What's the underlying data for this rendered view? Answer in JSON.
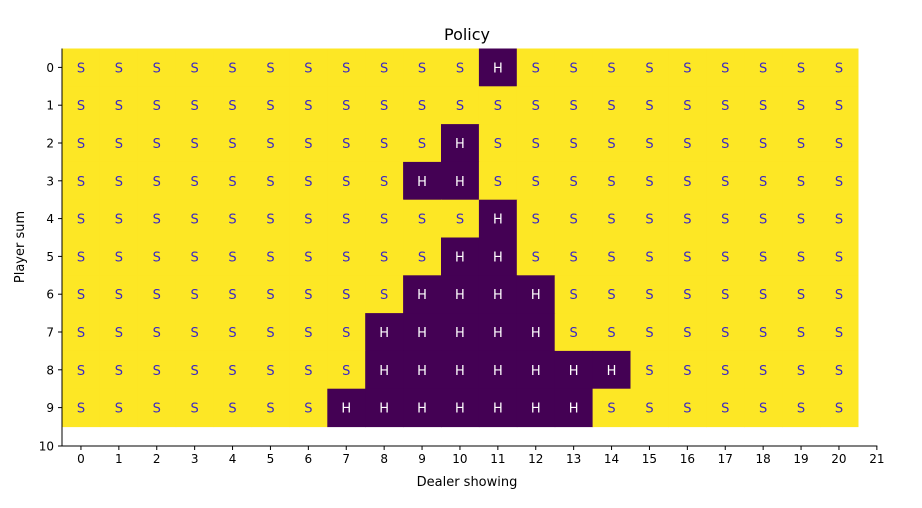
{
  "chart_data": {
    "type": "heatmap",
    "title": "Policy",
    "xlabel": "Dealer showing",
    "ylabel": "Player sum",
    "x_ticks": [
      "0",
      "1",
      "2",
      "3",
      "4",
      "5",
      "6",
      "7",
      "8",
      "9",
      "10",
      "11",
      "12",
      "13",
      "14",
      "15",
      "16",
      "17",
      "18",
      "19",
      "20",
      "21"
    ],
    "y_ticks": [
      "0",
      "1",
      "2",
      "3",
      "4",
      "5",
      "6",
      "7",
      "8",
      "9",
      "10"
    ],
    "columns": 21,
    "rows": [
      "SSSSSSSSSSSHSSSSSSSSS",
      "SSSSSSSSSSSSSSSSSSSSS",
      "SSSSSSSSSSHSSSSSSSSSS",
      "SSSSSSSSSHHSSSSSSSSSS",
      "SSSSSSSSSSSHSSSSSSSSS",
      "SSSSSSSSSSHHSSSSSSSSS",
      "SSSSSSSSSHHHHSSSSSSSS",
      "SSSSSSSSHHHHHSSSSSSSS",
      "SSSSSSSSHHHHHHHSSSSSS",
      "SSSSSSSHHHHHHHSSSSSSS"
    ],
    "colors": {
      "S": "#fde725",
      "H": "#440154",
      "S_text": "#3b28c4",
      "H_text": "#ffffff"
    }
  }
}
